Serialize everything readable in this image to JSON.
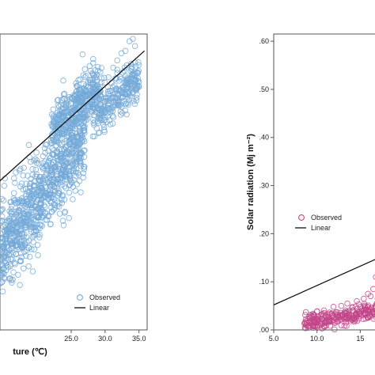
{
  "chart_data": [
    {
      "type": "scatter",
      "xlabel": "ture (℃)",
      "ylabel": "",
      "xlim": [
        14.5,
        36.2
      ],
      "ylim": [
        0.0,
        0.615
      ],
      "x_ticks": [
        "25.0",
        "30.0",
        "35.0"
      ],
      "y_ticks": [],
      "grid": false,
      "legend": "bottom-right",
      "colors": {
        "observed": "#74a9d8",
        "linear": "#111111"
      },
      "series": [
        {
          "name": "Observed",
          "marker": "circle",
          "clouds": [
            {
              "x_range": [
                14.5,
                27.0
              ],
              "y_center_at_x_start": 0.16,
              "slope": 0.02,
              "spread": 0.09,
              "count": 900
            },
            {
              "x_range": [
                22.0,
                29.5
              ],
              "y_center_at_x_start": 0.42,
              "slope": 0.012,
              "spread": 0.05,
              "count": 350
            },
            {
              "x_range": [
                28.0,
                35.0
              ],
              "y_center_at_x_start": 0.44,
              "slope": 0.012,
              "spread": 0.045,
              "count": 260
            }
          ],
          "points": [
            {
              "x": 30.5,
              "y": 0.525
            },
            {
              "x": 31.2,
              "y": 0.545
            },
            {
              "x": 31.8,
              "y": 0.56
            },
            {
              "x": 32.4,
              "y": 0.575
            },
            {
              "x": 33.0,
              "y": 0.58
            },
            {
              "x": 33.6,
              "y": 0.6
            },
            {
              "x": 34.1,
              "y": 0.605
            },
            {
              "x": 34.4,
              "y": 0.59
            },
            {
              "x": 33.2,
              "y": 0.55
            },
            {
              "x": 32.6,
              "y": 0.535
            },
            {
              "x": 35.0,
              "y": 0.505
            },
            {
              "x": 34.6,
              "y": 0.5
            }
          ]
        },
        {
          "name": "Linear",
          "type": "line",
          "x": [
            14.5,
            35.8
          ],
          "y": [
            0.31,
            0.58
          ]
        }
      ]
    },
    {
      "type": "scatter",
      "xlabel": "",
      "ylabel": "Solar radiation (Mj m⁻²)",
      "xlim": [
        5.0,
        17.8
      ],
      "ylim": [
        0.0,
        0.615
      ],
      "x_ticks": [
        "5.0",
        "10.0",
        "15"
      ],
      "y_ticks": [
        ".00",
        ".10",
        ".20",
        ".30",
        ".40",
        ".50",
        ".60"
      ],
      "grid": false,
      "legend": "middle-left",
      "colors": {
        "observed": "#c2468a",
        "linear": "#111111"
      },
      "series": [
        {
          "name": "Observed",
          "marker": "circle",
          "clouds": [
            {
              "x_range": [
                8.5,
                17.8
              ],
              "y_center_at_x_start": 0.015,
              "slope": 0.0028,
              "spread": 0.018,
              "count": 280
            }
          ],
          "points": [
            {
              "x": 16.8,
              "y": 0.11
            },
            {
              "x": 17.2,
              "y": 0.105
            },
            {
              "x": 17.5,
              "y": 0.095
            },
            {
              "x": 16.5,
              "y": 0.085
            },
            {
              "x": 17.6,
              "y": 0.08
            },
            {
              "x": 15.9,
              "y": 0.075
            },
            {
              "x": 16.2,
              "y": 0.07
            },
            {
              "x": 17.0,
              "y": 0.065
            },
            {
              "x": 15.4,
              "y": 0.065
            },
            {
              "x": 14.6,
              "y": 0.06
            },
            {
              "x": 16.9,
              "y": 0.055
            },
            {
              "x": 12.8,
              "y": 0.05
            },
            {
              "x": 11.9,
              "y": 0.048
            },
            {
              "x": 13.5,
              "y": 0.055
            }
          ]
        },
        {
          "name": "Linear",
          "type": "line",
          "x": [
            5.0,
            17.8
          ],
          "y": [
            0.052,
            0.155
          ]
        }
      ]
    }
  ]
}
